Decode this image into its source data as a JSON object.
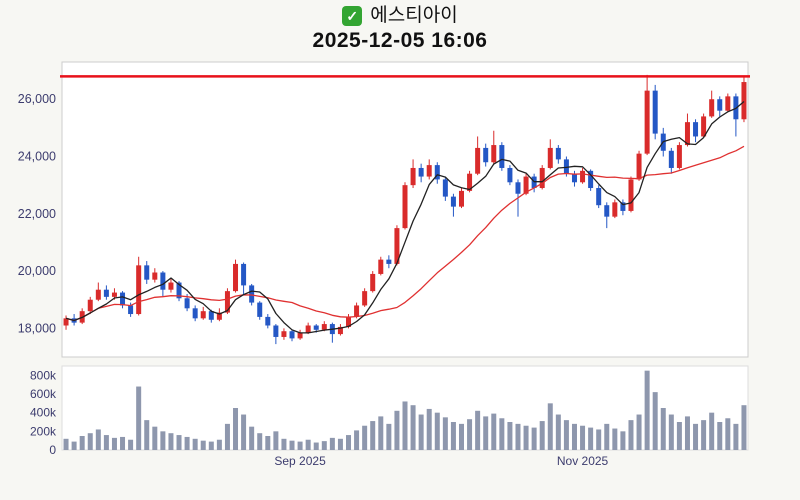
{
  "header": {
    "check_icon": "✓",
    "title": "에스티아이",
    "timestamp": "2025-12-05 16:06"
  },
  "chart_data": {
    "type": "candlestick",
    "title": "에스티아이",
    "subtitle": "2025-12-05 16:06",
    "legend_position": "none",
    "grid": false,
    "price_axis": {
      "ticks": [
        "26,000",
        "24,000",
        "22,000",
        "20,000",
        "18,000"
      ],
      "tick_values": [
        26000,
        24000,
        22000,
        20000,
        18000
      ],
      "min": 17000,
      "max": 27300
    },
    "volume_axis": {
      "ticks": [
        "800k",
        "600k",
        "400k",
        "200k",
        "0"
      ],
      "tick_values": [
        800,
        600,
        400,
        200,
        0
      ],
      "max": 900,
      "unit": "k"
    },
    "x_ticks": [
      {
        "label": "Sep 2025",
        "index": 29
      },
      {
        "label": "Nov 2025",
        "index": 64
      }
    ],
    "resistance_line": 26800,
    "ma_short_period": 5,
    "ma_long_period": 20,
    "colors": {
      "up": "#d92b2b",
      "down": "#2457c5",
      "ma_short": "#222222",
      "ma_long": "#e03131",
      "volume": "#8e97ad",
      "line": "#e8111a",
      "axis_text": "#3c3c6e",
      "panel_bg": "#ffffff",
      "panel_border": "#cccccc"
    },
    "candles_format": [
      "open",
      "high",
      "low",
      "close",
      "volume_k"
    ],
    "candles": [
      [
        18100,
        18450,
        17950,
        18350,
        120
      ],
      [
        18350,
        18500,
        18100,
        18200,
        90
      ],
      [
        18200,
        18700,
        18150,
        18600,
        150
      ],
      [
        18600,
        19100,
        18500,
        19000,
        180
      ],
      [
        19000,
        19600,
        18950,
        19350,
        220
      ],
      [
        19350,
        19500,
        19000,
        19100,
        160
      ],
      [
        19100,
        19400,
        19000,
        19250,
        130
      ],
      [
        19250,
        19300,
        18700,
        18800,
        140
      ],
      [
        18800,
        18900,
        18400,
        18500,
        110
      ],
      [
        18500,
        20500,
        18450,
        20200,
        680
      ],
      [
        20200,
        20350,
        19550,
        19700,
        320
      ],
      [
        19700,
        20100,
        19600,
        19950,
        250
      ],
      [
        19950,
        20000,
        19100,
        19350,
        200
      ],
      [
        19350,
        19750,
        19250,
        19600,
        180
      ],
      [
        19600,
        19650,
        18950,
        19050,
        160
      ],
      [
        19050,
        19200,
        18600,
        18700,
        140
      ],
      [
        18700,
        18800,
        18250,
        18350,
        120
      ],
      [
        18350,
        18750,
        18300,
        18600,
        100
      ],
      [
        18600,
        18650,
        18200,
        18300,
        90
      ],
      [
        18300,
        18700,
        18250,
        18550,
        110
      ],
      [
        18550,
        19400,
        18500,
        19300,
        280
      ],
      [
        19300,
        20400,
        19250,
        20250,
        450
      ],
      [
        20250,
        20300,
        19200,
        19500,
        380
      ],
      [
        19500,
        19550,
        18800,
        18900,
        250
      ],
      [
        18900,
        18950,
        18300,
        18400,
        180
      ],
      [
        18400,
        18500,
        18000,
        18100,
        150
      ],
      [
        18100,
        18150,
        17450,
        17700,
        200
      ],
      [
        17700,
        18000,
        17600,
        17900,
        120
      ],
      [
        17900,
        17950,
        17550,
        17650,
        100
      ],
      [
        17650,
        17950,
        17600,
        17850,
        90
      ],
      [
        17850,
        18200,
        17800,
        18100,
        110
      ],
      [
        18100,
        18150,
        17850,
        17950,
        80
      ],
      [
        17950,
        18250,
        17900,
        18150,
        95
      ],
      [
        18150,
        18200,
        17500,
        17800,
        130
      ],
      [
        17800,
        18150,
        17750,
        18050,
        120
      ],
      [
        18050,
        18500,
        18000,
        18400,
        160
      ],
      [
        18400,
        18900,
        18350,
        18800,
        210
      ],
      [
        18800,
        19400,
        18750,
        19300,
        260
      ],
      [
        19300,
        20000,
        19250,
        19900,
        310
      ],
      [
        19900,
        20500,
        19850,
        20400,
        360
      ],
      [
        20400,
        20550,
        20100,
        20250,
        280
      ],
      [
        20250,
        21600,
        20200,
        21500,
        420
      ],
      [
        21500,
        23100,
        21450,
        23000,
        520
      ],
      [
        23000,
        23900,
        22900,
        23600,
        480
      ],
      [
        23600,
        23750,
        23100,
        23300,
        380
      ],
      [
        23300,
        23900,
        23200,
        23700,
        440
      ],
      [
        23700,
        23800,
        23050,
        23200,
        400
      ],
      [
        23200,
        23300,
        22450,
        22600,
        350
      ],
      [
        22600,
        22700,
        21900,
        22250,
        300
      ],
      [
        22250,
        22900,
        22200,
        22800,
        280
      ],
      [
        22800,
        23500,
        22750,
        23400,
        330
      ],
      [
        23400,
        24700,
        23350,
        24300,
        420
      ],
      [
        24300,
        24450,
        23650,
        23800,
        360
      ],
      [
        23800,
        24900,
        23750,
        24400,
        390
      ],
      [
        24400,
        24500,
        23500,
        23600,
        340
      ],
      [
        23600,
        23700,
        23000,
        23100,
        300
      ],
      [
        23100,
        23200,
        21900,
        22700,
        280
      ],
      [
        22700,
        23400,
        22650,
        23300,
        260
      ],
      [
        23300,
        23400,
        22750,
        22900,
        240
      ],
      [
        22900,
        23700,
        22850,
        23600,
        310
      ],
      [
        23600,
        24600,
        23550,
        24300,
        500
      ],
      [
        24300,
        24400,
        23750,
        23900,
        380
      ],
      [
        23900,
        24000,
        23300,
        23400,
        320
      ],
      [
        23400,
        23500,
        22950,
        23100,
        280
      ],
      [
        23100,
        23600,
        23050,
        23500,
        260
      ],
      [
        23500,
        23550,
        22800,
        22900,
        240
      ],
      [
        22900,
        23000,
        22200,
        22300,
        220
      ],
      [
        22300,
        22400,
        21500,
        21900,
        280
      ],
      [
        21900,
        22500,
        21850,
        22400,
        230
      ],
      [
        22400,
        22500,
        21950,
        22100,
        200
      ],
      [
        22100,
        23300,
        22050,
        23200,
        320
      ],
      [
        23200,
        24200,
        23150,
        24100,
        380
      ],
      [
        24100,
        26850,
        24050,
        26300,
        850
      ],
      [
        26300,
        26500,
        24600,
        24800,
        620
      ],
      [
        24800,
        25000,
        24000,
        24200,
        450
      ],
      [
        24200,
        24300,
        23400,
        23600,
        380
      ],
      [
        23600,
        24500,
        23550,
        24400,
        300
      ],
      [
        24400,
        25500,
        24350,
        25200,
        360
      ],
      [
        25200,
        25300,
        24500,
        24700,
        280
      ],
      [
        24700,
        25500,
        24650,
        25400,
        320
      ],
      [
        25400,
        26300,
        25350,
        26000,
        400
      ],
      [
        26000,
        26100,
        25400,
        25600,
        300
      ],
      [
        25600,
        26200,
        25550,
        26100,
        340
      ],
      [
        26100,
        26200,
        24700,
        25300,
        280
      ],
      [
        25300,
        26800,
        25200,
        26600,
        480
      ]
    ]
  }
}
